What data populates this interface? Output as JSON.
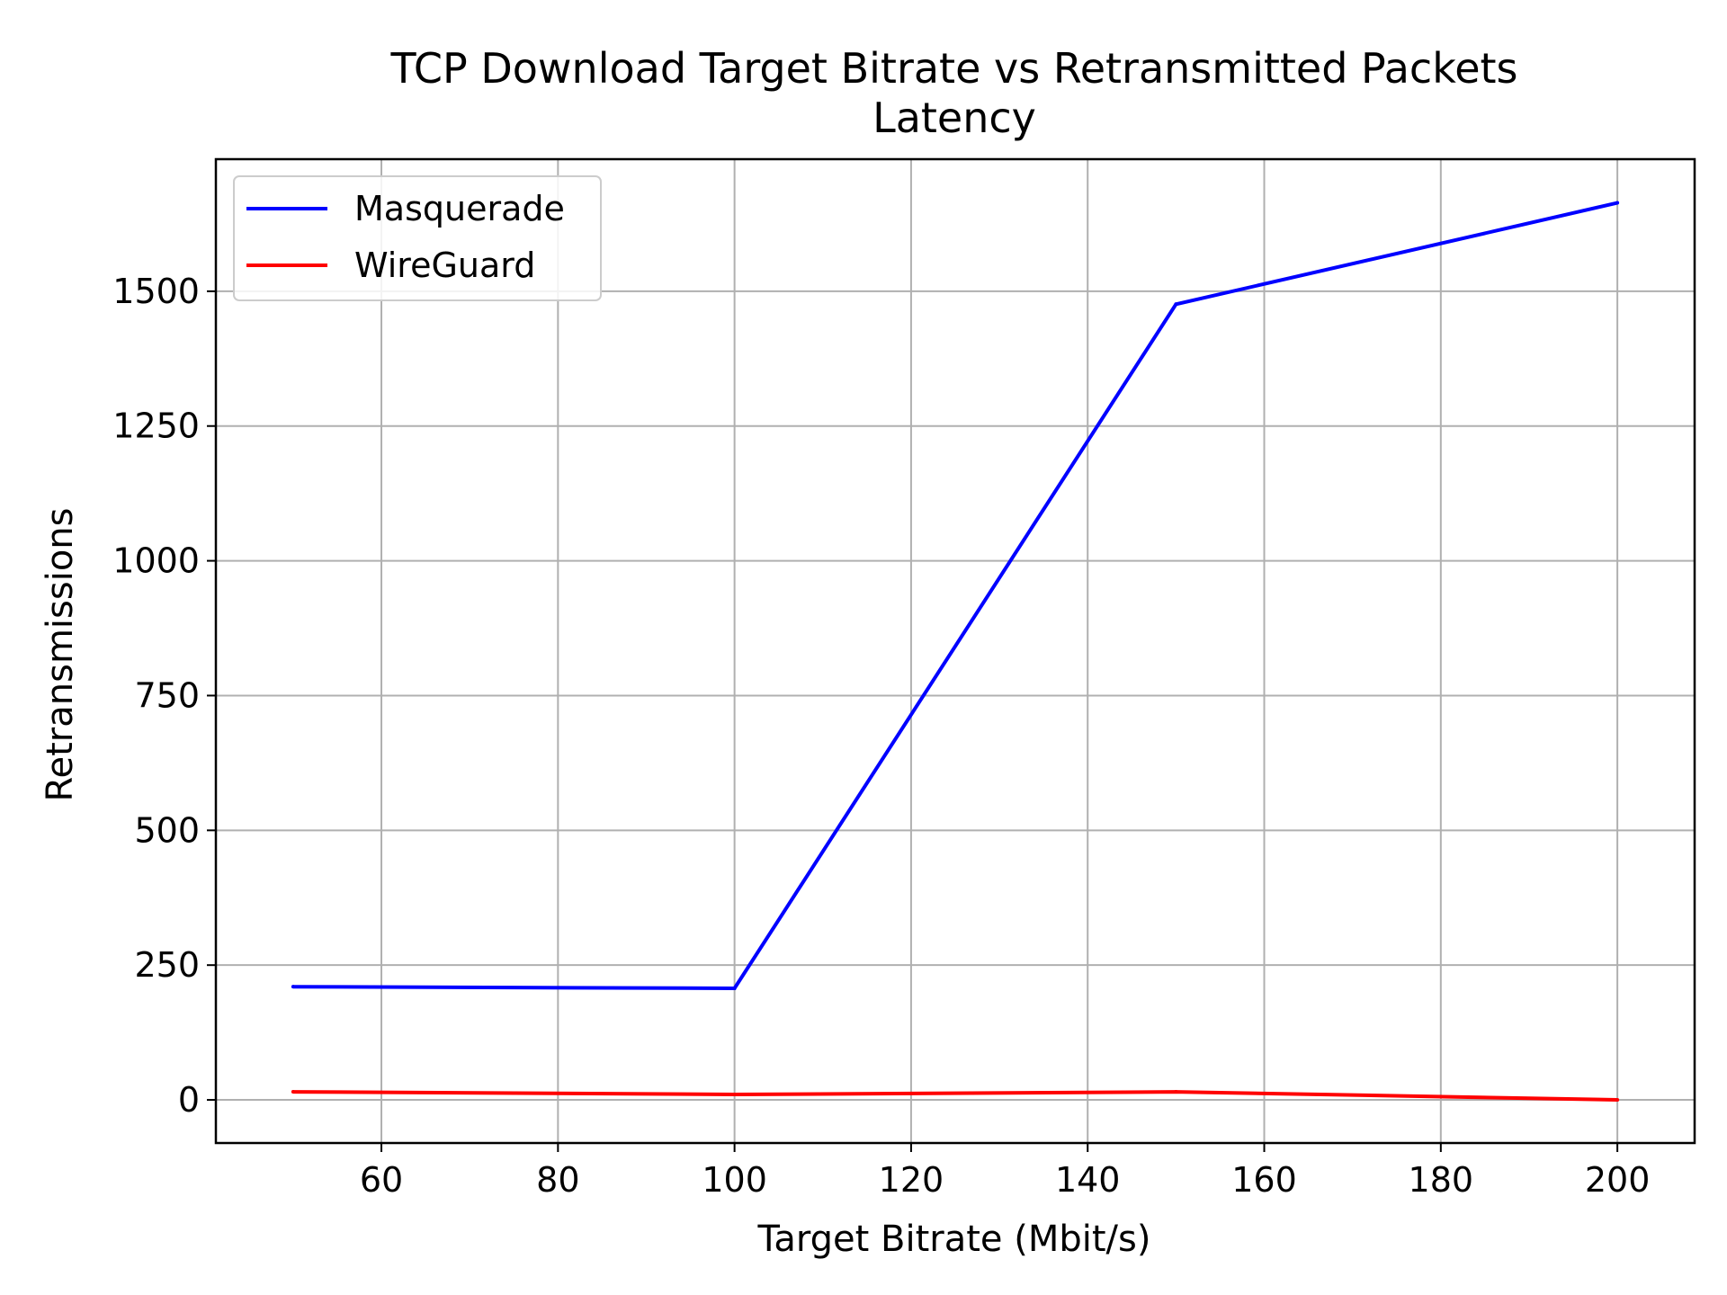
{
  "chart_data": {
    "type": "line",
    "title": "TCP Download Target Bitrate vs Retransmitted Packets",
    "subtitle": "Latency",
    "xlabel": "Target Bitrate (Mbit/s)",
    "ylabel": "Retransmissions",
    "xlim": [
      41.25,
      208.75
    ],
    "ylim": [
      -80,
      1745
    ],
    "xticks": [
      60,
      80,
      100,
      120,
      140,
      160,
      180,
      200
    ],
    "yticks": [
      0,
      250,
      500,
      750,
      1000,
      1250,
      1500
    ],
    "grid": true,
    "legend": "upper left",
    "series": [
      {
        "name": "Masquerade",
        "color": "#0000ff",
        "x": [
          50,
          100,
          150,
          200
        ],
        "y": [
          210,
          207,
          1476,
          1664
        ]
      },
      {
        "name": "WireGuard",
        "color": "#ff0000",
        "x": [
          50,
          100,
          150,
          200
        ],
        "y": [
          15,
          10,
          15,
          0
        ]
      }
    ]
  }
}
